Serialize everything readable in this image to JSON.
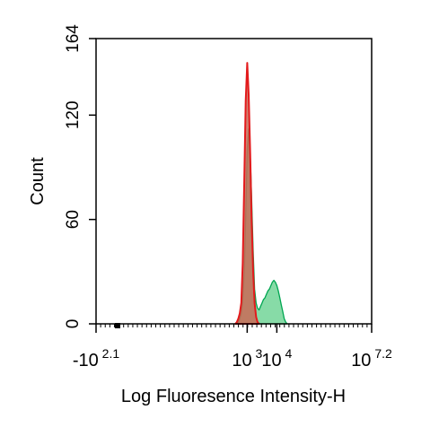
{
  "chart_data": {
    "type": "area",
    "xlabel": "Log Fluoresence Intensity-H",
    "ylabel": "Count",
    "ylim": [
      0,
      164
    ],
    "xlim_log10": [
      -2.1,
      7.2
    ],
    "grid": false,
    "y_ticks": [
      {
        "value": 0,
        "label": "0"
      },
      {
        "value": 60,
        "label": "60"
      },
      {
        "value": 120,
        "label": "120"
      },
      {
        "value": 164,
        "label": "164"
      }
    ],
    "x_ticks": [
      {
        "log10": -2.1,
        "base": "-10",
        "exp": "2.1"
      },
      {
        "log10": 3,
        "base": "10",
        "exp": "3"
      },
      {
        "log10": 4,
        "base": "10",
        "exp": "4"
      },
      {
        "log10": 7.2,
        "base": "10",
        "exp": "7.2"
      }
    ],
    "series": [
      {
        "color": "#00a651",
        "fill": "#5fcf8a",
        "points": [
          [
            2.65,
            0
          ],
          [
            2.7,
            1
          ],
          [
            2.75,
            3
          ],
          [
            2.8,
            6
          ],
          [
            2.85,
            14
          ],
          [
            2.9,
            30
          ],
          [
            2.95,
            62
          ],
          [
            3.0,
            100
          ],
          [
            3.05,
            112
          ],
          [
            3.1,
            98
          ],
          [
            3.15,
            72
          ],
          [
            3.2,
            42
          ],
          [
            3.25,
            20
          ],
          [
            3.3,
            12
          ],
          [
            3.35,
            9
          ],
          [
            3.4,
            8
          ],
          [
            3.45,
            10
          ],
          [
            3.5,
            12
          ],
          [
            3.55,
            14
          ],
          [
            3.6,
            15
          ],
          [
            3.65,
            17
          ],
          [
            3.7,
            19
          ],
          [
            3.75,
            20
          ],
          [
            3.8,
            22
          ],
          [
            3.85,
            24
          ],
          [
            3.9,
            25
          ],
          [
            3.95,
            24
          ],
          [
            4.0,
            22
          ],
          [
            4.05,
            19
          ],
          [
            4.1,
            15
          ],
          [
            4.15,
            11
          ],
          [
            4.2,
            7
          ],
          [
            4.25,
            3
          ],
          [
            4.3,
            1
          ],
          [
            4.35,
            0
          ]
        ]
      },
      {
        "color": "#e31a1c",
        "fill": "#c96a57",
        "points": [
          [
            2.6,
            0
          ],
          [
            2.65,
            1
          ],
          [
            2.7,
            3
          ],
          [
            2.75,
            6
          ],
          [
            2.8,
            12
          ],
          [
            2.85,
            35
          ],
          [
            2.9,
            82
          ],
          [
            2.95,
            128
          ],
          [
            3.0,
            150
          ],
          [
            3.05,
            132
          ],
          [
            3.1,
            98
          ],
          [
            3.15,
            60
          ],
          [
            3.2,
            30
          ],
          [
            3.25,
            12
          ],
          [
            3.3,
            4
          ],
          [
            3.35,
            1
          ],
          [
            3.4,
            0
          ]
        ]
      }
    ]
  }
}
